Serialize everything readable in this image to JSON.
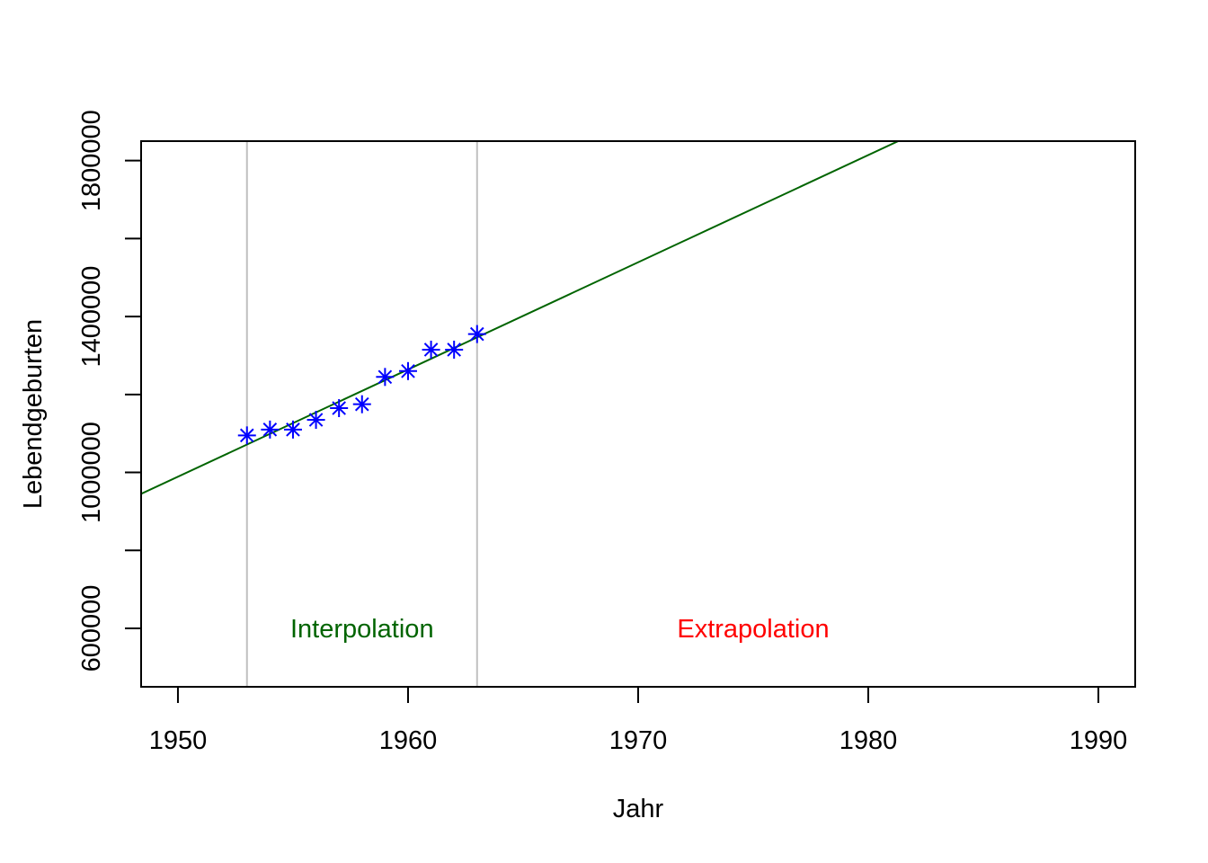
{
  "chart_data": {
    "type": "scatter",
    "title": "",
    "xlabel": "Jahr",
    "ylabel": "Lebendgeburten",
    "xlim": [
      1948.4,
      1991.6
    ],
    "ylim": [
      450000,
      1850000
    ],
    "x_ticks": [
      1950,
      1960,
      1970,
      1980,
      1990
    ],
    "x_tick_labels": [
      "1950",
      "1960",
      "1970",
      "1980",
      "1990"
    ],
    "y_ticks": [
      600000,
      800000,
      1000000,
      1200000,
      1400000,
      1600000,
      1800000
    ],
    "y_tick_labels": [
      "600000",
      "",
      "1000000",
      "",
      "1400000",
      "",
      "1800000"
    ],
    "grid": false,
    "series": [
      {
        "marker": "asterisk",
        "color": "#0000ff",
        "x": [
          1953,
          1954,
          1955,
          1956,
          1957,
          1958,
          1959,
          1960,
          1961,
          1962,
          1963
        ],
        "y": [
          1095000,
          1110000,
          1110000,
          1135000,
          1165000,
          1175000,
          1245000,
          1260000,
          1315000,
          1315000,
          1355000
        ]
      }
    ],
    "fit_line": {
      "color": "#006400",
      "x": [
        1948.4,
        1981.3
      ],
      "y": [
        945000,
        1850000
      ]
    },
    "vertical_lines": {
      "color": "#c0c0c0",
      "x": [
        1953,
        1963
      ]
    },
    "annotations": [
      {
        "text": "Interpolation",
        "x": 1958,
        "y": 600000,
        "color": "#006400"
      },
      {
        "text": "Extrapolation",
        "x": 1975,
        "y": 600000,
        "color": "#ff0000"
      }
    ]
  }
}
